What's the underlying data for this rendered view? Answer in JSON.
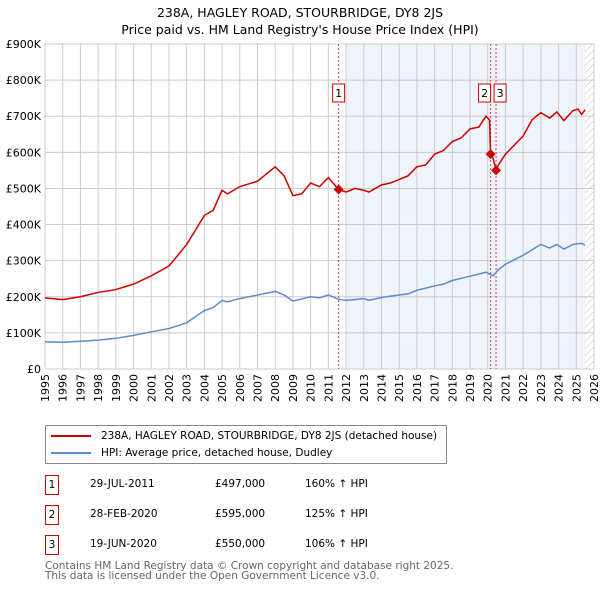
{
  "title": "238A, HAGLEY ROAD, STOURBRIDGE, DY8 2JS",
  "subtitle": "Price paid vs. HM Land Registry's House Price Index (HPI)",
  "chart_data": {
    "type": "line",
    "xlim": [
      1995,
      2026
    ],
    "ylim": [
      0,
      900000
    ],
    "x_ticks": [
      "1995",
      "1996",
      "1997",
      "1998",
      "1999",
      "2000",
      "2001",
      "2002",
      "2003",
      "2004",
      "2005",
      "2006",
      "2007",
      "2008",
      "2009",
      "2010",
      "2011",
      "2012",
      "2013",
      "2014",
      "2015",
      "2016",
      "2017",
      "2018",
      "2019",
      "2020",
      "2021",
      "2022",
      "2023",
      "2024",
      "2025",
      "2026"
    ],
    "y_ticks": [
      {
        "v": 0,
        "label": "£0"
      },
      {
        "v": 100000,
        "label": "£100K"
      },
      {
        "v": 200000,
        "label": "£200K"
      },
      {
        "v": 300000,
        "label": "£300K"
      },
      {
        "v": 400000,
        "label": "£400K"
      },
      {
        "v": 500000,
        "label": "£500K"
      },
      {
        "v": 600000,
        "label": "£600K"
      },
      {
        "v": 700000,
        "label": "£700K"
      },
      {
        "v": 800000,
        "label": "£800K"
      },
      {
        "v": 900000,
        "label": "£900K"
      }
    ],
    "grid": true,
    "series": [
      {
        "name": "238A, HAGLEY ROAD, STOURBRIDGE, DY8 2JS (detached house)",
        "color": "#cc0000",
        "x": [
          1995,
          1996,
          1997,
          1998,
          1999,
          2000,
          2001,
          2002,
          2003,
          2004,
          2004.5,
          2005,
          2005.3,
          2006,
          2007,
          2007.5,
          2008,
          2008.5,
          2009,
          2009.5,
          2010,
          2010.5,
          2011,
          2011.58,
          2012,
          2012.5,
          2013,
          2013.3,
          2014,
          2014.5,
          2015,
          2015.5,
          2016,
          2016.5,
          2017,
          2017.5,
          2018,
          2018.5,
          2019,
          2019.5,
          2019.9,
          2020.1,
          2020.16,
          2020.3,
          2020.47,
          2020.6,
          2021,
          2021.5,
          2022,
          2022.5,
          2023,
          2023.5,
          2023.9,
          2024.3,
          2024.8,
          2025.1,
          2025.3,
          2025.5
        ],
        "y": [
          197000,
          192000,
          200000,
          212000,
          220000,
          235000,
          258000,
          285000,
          345000,
          425000,
          440000,
          495000,
          485000,
          505000,
          520000,
          540000,
          560000,
          535000,
          480000,
          485000,
          515000,
          505000,
          530000,
          497000,
          490000,
          500000,
          495000,
          490000,
          510000,
          515000,
          525000,
          535000,
          560000,
          565000,
          595000,
          605000,
          630000,
          640000,
          665000,
          670000,
          700000,
          690000,
          595000,
          585000,
          550000,
          565000,
          595000,
          620000,
          645000,
          690000,
          710000,
          695000,
          712000,
          688000,
          715000,
          720000,
          705000,
          718000
        ]
      },
      {
        "name": "HPI: Average price, detached house, Dudley",
        "color": "#5b8bd0",
        "x": [
          1995,
          1996,
          1997,
          1998,
          1999,
          2000,
          2001,
          2002,
          2003,
          2003.5,
          2004,
          2004.5,
          2005,
          2005.3,
          2006,
          2007,
          2008,
          2008.5,
          2009,
          2010,
          2010.5,
          2011,
          2011.58,
          2012,
          2013,
          2013.3,
          2014,
          2015,
          2015.5,
          2016,
          2017,
          2017.5,
          2018,
          2019,
          2019.9,
          2020.3,
          2020.6,
          2021,
          2022,
          2022.5,
          2023,
          2023.5,
          2023.9,
          2024.3,
          2024.8,
          2025.3,
          2025.5
        ],
        "y": [
          75000,
          74000,
          77000,
          80000,
          85000,
          93000,
          103000,
          112000,
          128000,
          145000,
          162000,
          170000,
          190000,
          186000,
          195000,
          205000,
          215000,
          205000,
          188000,
          200000,
          197000,
          205000,
          193000,
          190000,
          195000,
          190000,
          198000,
          205000,
          208000,
          218000,
          230000,
          235000,
          245000,
          257000,
          268000,
          258000,
          275000,
          290000,
          315000,
          330000,
          345000,
          335000,
          345000,
          332000,
          345000,
          348000,
          342000
        ]
      }
    ],
    "sales": [
      {
        "n": "1",
        "x": 2011.58,
        "y": 497000
      },
      {
        "n": "2",
        "x": 2020.16,
        "y": 595000
      },
      {
        "n": "3",
        "x": 2020.47,
        "y": 550000
      }
    ],
    "shaded_from": 2012,
    "hatched_from": 2025.5
  },
  "legend": {
    "red": "238A, HAGLEY ROAD, STOURBRIDGE, DY8 2JS (detached house)",
    "blue": "HPI: Average price, detached house, Dudley"
  },
  "transactions": [
    {
      "n": "1",
      "date": "29-JUL-2011",
      "price": "£497,000",
      "hpi": "160% ↑ HPI"
    },
    {
      "n": "2",
      "date": "28-FEB-2020",
      "price": "£595,000",
      "hpi": "125% ↑ HPI"
    },
    {
      "n": "3",
      "date": "19-JUN-2020",
      "price": "£550,000",
      "hpi": "106% ↑ HPI"
    }
  ],
  "footer": [
    "Contains HM Land Registry data © Crown copyright and database right 2025.",
    "This data is licensed under the Open Government Licence v3.0."
  ]
}
